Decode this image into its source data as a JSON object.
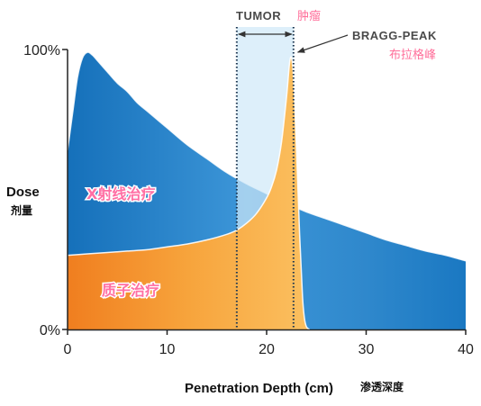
{
  "chart_data": {
    "type": "area",
    "title": "",
    "xlabel": "Penetration Depth (cm)",
    "xlabel_cn": "渗透深度",
    "ylabel": "Dose",
    "ylabel_cn": "剂量",
    "xlim": [
      0,
      40
    ],
    "ylim": [
      0,
      100
    ],
    "x_ticks": [
      "0",
      "10",
      "20",
      "30",
      "40"
    ],
    "y_ticks": [
      "0%",
      "100%"
    ],
    "series": [
      {
        "name": "X射线治疗",
        "color": "#1a78c2",
        "points": [
          [
            0,
            64
          ],
          [
            0.5,
            77
          ],
          [
            1,
            90
          ],
          [
            1.5,
            97
          ],
          [
            2,
            99
          ],
          [
            2.5,
            98
          ],
          [
            3,
            96
          ],
          [
            4,
            92
          ],
          [
            5,
            88
          ],
          [
            6,
            85
          ],
          [
            7,
            81
          ],
          [
            8,
            78
          ],
          [
            10,
            72
          ],
          [
            12,
            66
          ],
          [
            14,
            61
          ],
          [
            16,
            56
          ],
          [
            18,
            52
          ],
          [
            20,
            48.5
          ],
          [
            22,
            45
          ],
          [
            24,
            42
          ],
          [
            26,
            39.5
          ],
          [
            28,
            37
          ],
          [
            30,
            34.5
          ],
          [
            32,
            32
          ],
          [
            34,
            30
          ],
          [
            36,
            28
          ],
          [
            38,
            26.5
          ],
          [
            40,
            24.5
          ]
        ]
      },
      {
        "name": "质子治疗",
        "color": "#f5902a",
        "points": [
          [
            0,
            26.5
          ],
          [
            2,
            27
          ],
          [
            4,
            27.5
          ],
          [
            6,
            28
          ],
          [
            8,
            28.5
          ],
          [
            10,
            29.5
          ],
          [
            12,
            30.5
          ],
          [
            14,
            32
          ],
          [
            16,
            34
          ],
          [
            17,
            35.5
          ],
          [
            18,
            38
          ],
          [
            19,
            41.5
          ],
          [
            20,
            47
          ],
          [
            20.5,
            51
          ],
          [
            21,
            57
          ],
          [
            21.5,
            67
          ],
          [
            22,
            83
          ],
          [
            22.3,
            95
          ],
          [
            22.5,
            97
          ],
          [
            22.7,
            90
          ],
          [
            23,
            65
          ],
          [
            23.3,
            35
          ],
          [
            23.6,
            12
          ],
          [
            23.8,
            4
          ],
          [
            24,
            1
          ],
          [
            24.3,
            0
          ]
        ]
      }
    ],
    "annotations": {
      "tumor_label": "TUMOR",
      "tumor_label_cn": "肿瘤",
      "tumor_range": [
        17,
        22.7
      ],
      "bragg_label": "BRAGG-PEAK",
      "bragg_label_cn": "布拉格峰",
      "bragg_x": 22.5
    }
  }
}
